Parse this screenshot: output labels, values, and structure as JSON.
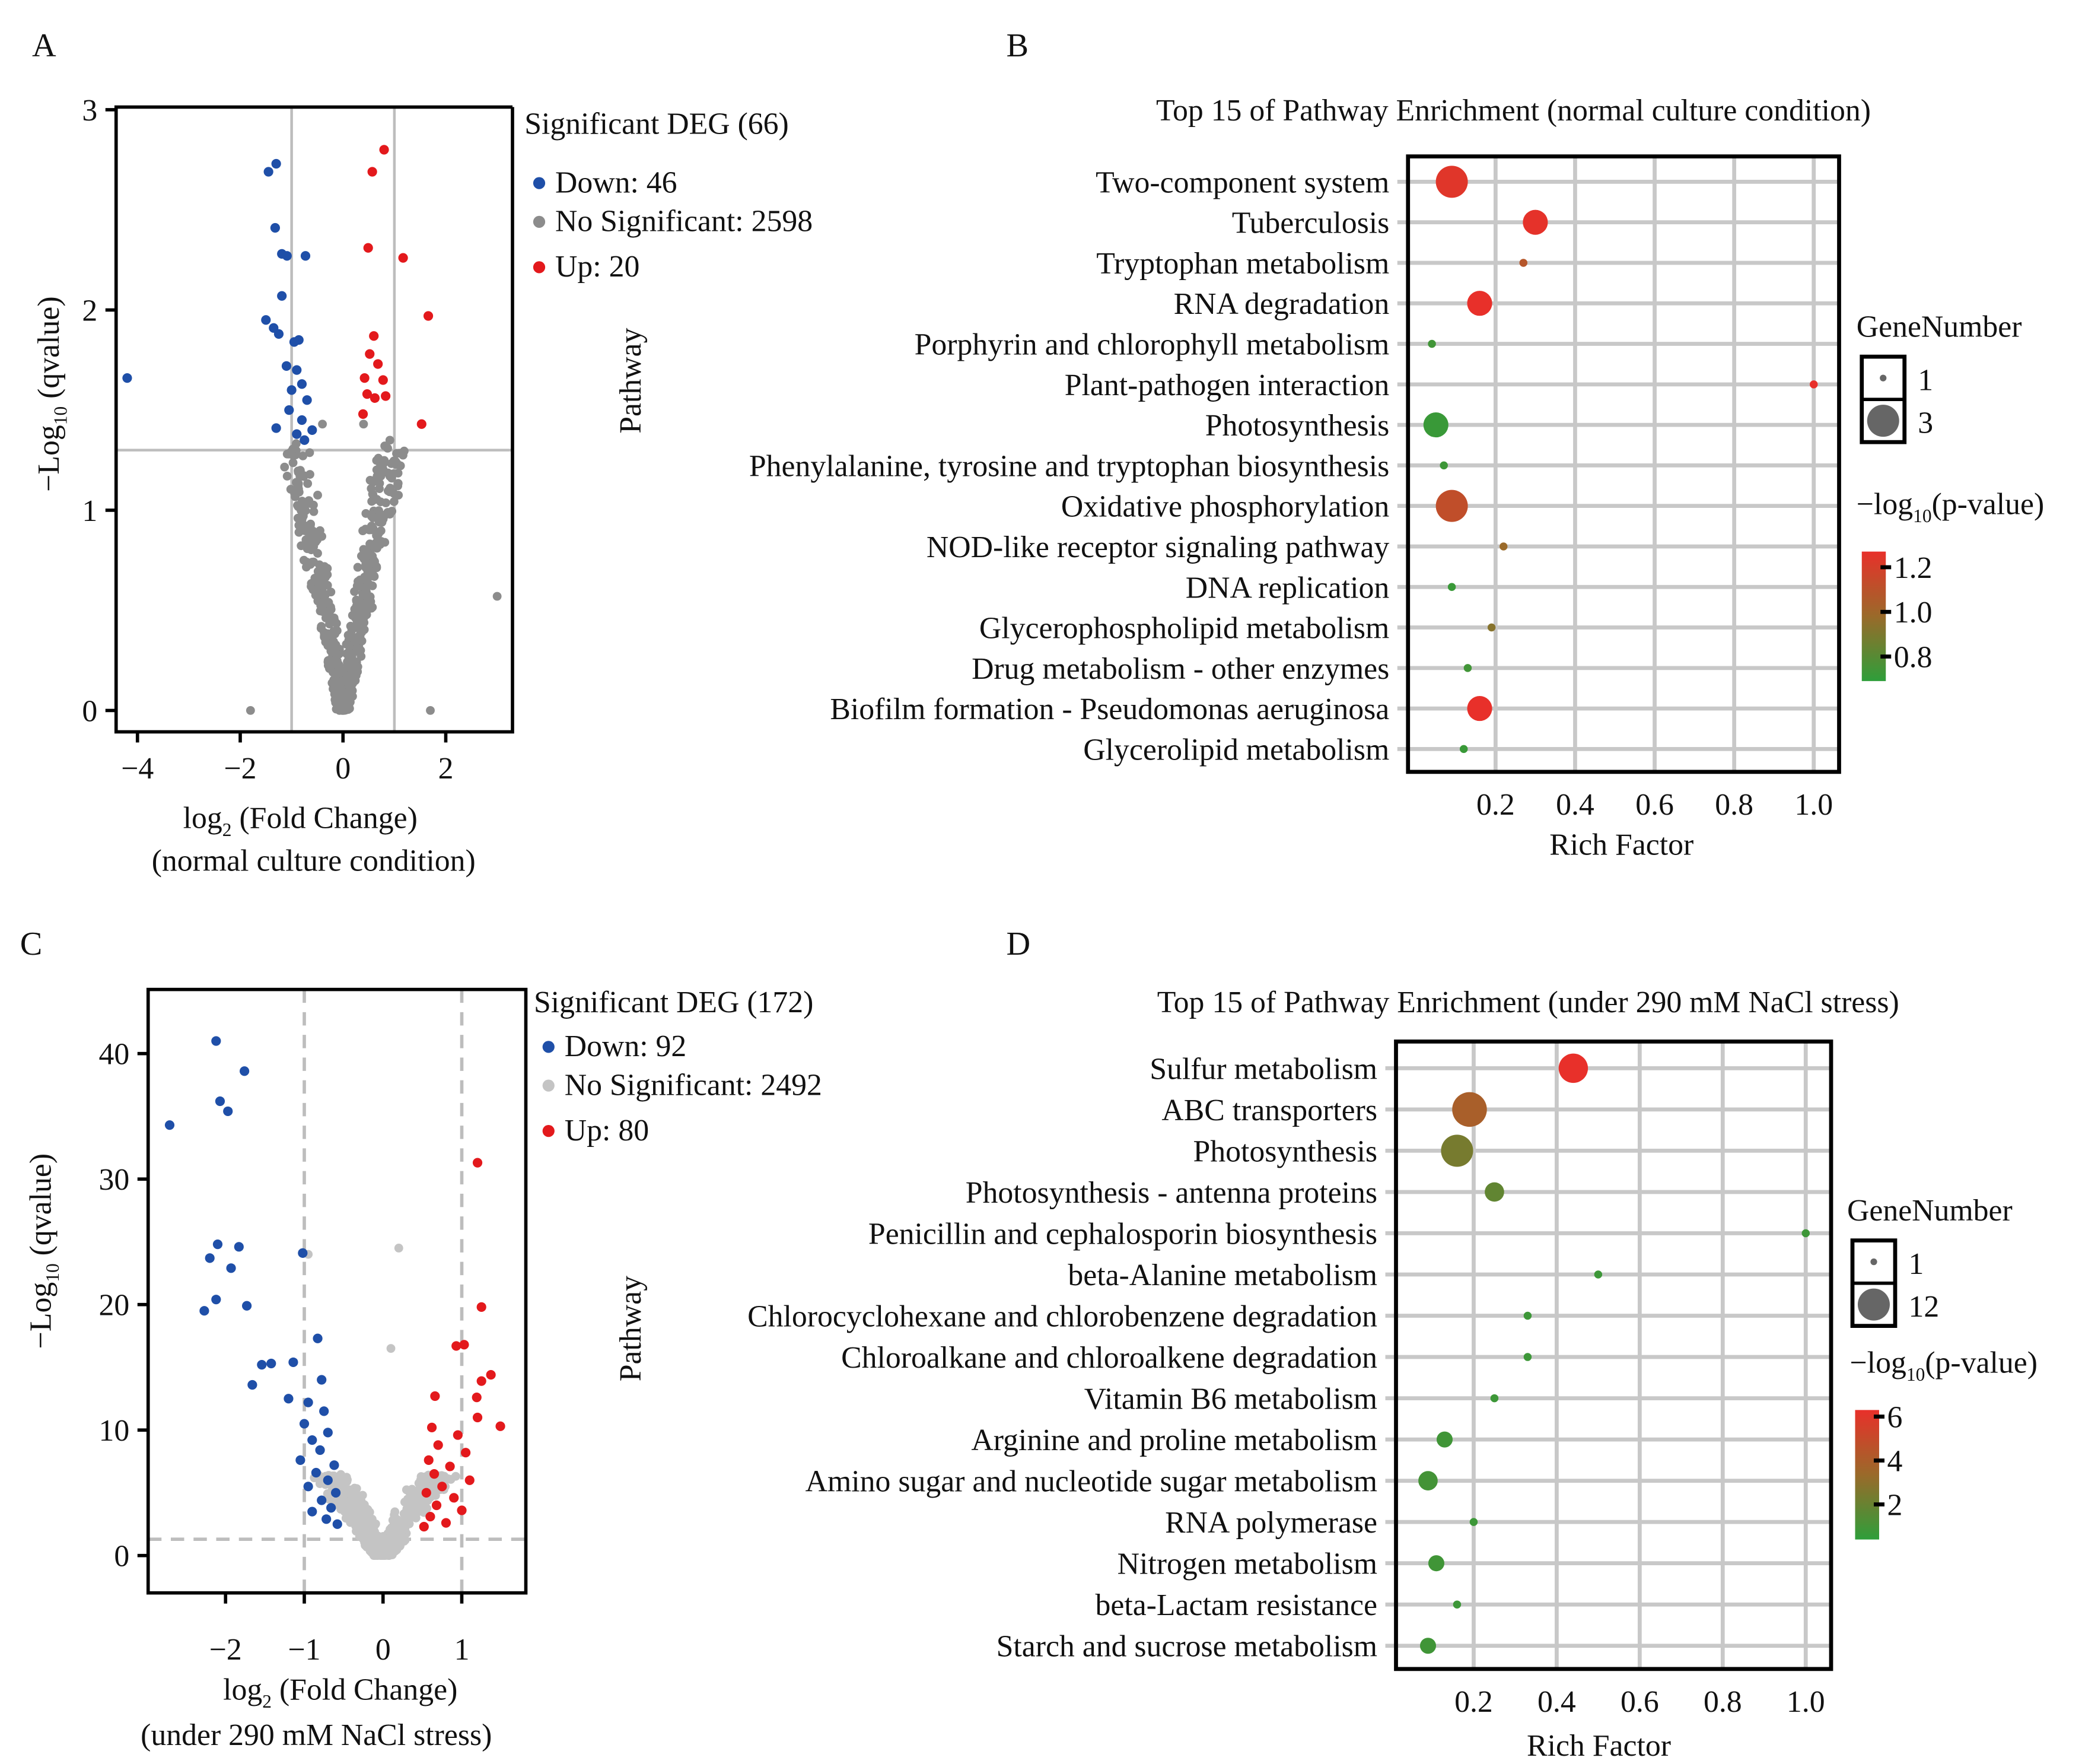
{
  "panel_labels": [
    "A",
    "B",
    "C",
    "D"
  ],
  "colors": {
    "down": "#1f4fa8",
    "up": "#e3191c",
    "ns": "#8c8c8c",
    "ns_light": "#c4c4c4",
    "low": "#2e9e3a",
    "mid": "#9a6a2a",
    "high": "#e8302a"
  },
  "chart_data": [
    {
      "type": "scatter",
      "id": "A",
      "xlabel_main": "log",
      "xlabel_sub": "2",
      "xlabel_rest": " (Fold Change)",
      "xlabel_line2": "(normal culture condition)",
      "ylabel_main": "−Log",
      "ylabel_sub": "10",
      "ylabel_rest": " (qvalue)",
      "xticks": [
        "−4",
        "−2",
        "0",
        "2"
      ],
      "xtick_values": [
        -4,
        -2,
        0,
        2
      ],
      "yticks": [
        "0",
        "1",
        "2",
        "3"
      ],
      "ytick_values": [
        0,
        1,
        2,
        3
      ],
      "xlim": [
        -4.5,
        3.4
      ],
      "ylim": [
        0,
        3
      ],
      "thresholds": {
        "fc": 1,
        "q": 1.3
      },
      "legend": {
        "title": "Significant DEG (66)",
        "down": "Down: 46",
        "ns": "No Significant: 2598",
        "up": "Up: 20"
      },
      "counts": {
        "down": 46,
        "ns": 2598,
        "up": 20
      },
      "down_points": [
        [
          -1.3,
          2.73
        ],
        [
          -1.45,
          2.69
        ],
        [
          -1.32,
          2.41
        ],
        [
          -1.19,
          2.28
        ],
        [
          -1.09,
          2.27
        ],
        [
          -0.73,
          2.27
        ],
        [
          -1.19,
          2.07
        ],
        [
          -1.5,
          1.95
        ],
        [
          -1.35,
          1.91
        ],
        [
          -0.86,
          1.85
        ],
        [
          -0.95,
          1.84
        ],
        [
          -1.25,
          1.88
        ],
        [
          -4.2,
          1.66
        ],
        [
          -1.1,
          1.72
        ],
        [
          -0.9,
          1.7
        ],
        [
          -0.8,
          1.63
        ],
        [
          -1.0,
          1.6
        ],
        [
          -0.7,
          1.55
        ],
        [
          -1.3,
          1.41
        ],
        [
          -0.8,
          1.45
        ],
        [
          -0.6,
          1.4
        ],
        [
          -1.05,
          1.5
        ],
        [
          -0.75,
          1.35
        ],
        [
          -0.9,
          1.38
        ]
      ],
      "up_points": [
        [
          0.8,
          2.8
        ],
        [
          0.57,
          2.69
        ],
        [
          0.49,
          2.31
        ],
        [
          1.17,
          2.26
        ],
        [
          1.66,
          1.97
        ],
        [
          0.6,
          1.87
        ],
        [
          0.52,
          1.78
        ],
        [
          0.68,
          1.73
        ],
        [
          0.42,
          1.66
        ],
        [
          0.78,
          1.65
        ],
        [
          0.47,
          1.58
        ],
        [
          0.83,
          1.57
        ],
        [
          1.53,
          1.43
        ],
        [
          0.39,
          1.48
        ],
        [
          0.62,
          1.56
        ]
      ]
    },
    {
      "type": "bubble",
      "id": "B",
      "title": "Top 15 of Pathway Enrichment (normal culture condition)",
      "xlabel": "Rich Factor",
      "ylabel": "Pathway",
      "xticks": [
        "0.2",
        "0.4",
        "0.6",
        "0.8",
        "1.0"
      ],
      "xtick_values": [
        0.2,
        0.4,
        0.6,
        0.8,
        1.0
      ],
      "categories": [
        "Two-component system",
        "Tuberculosis",
        "Tryptophan metabolism",
        "RNA degradation",
        "Porphyrin and chlorophyll metabolism",
        "Plant-pathogen interaction",
        "Photosynthesis",
        "Phenylalanine, tyrosine and tryptophan biosynthesis",
        "Oxidative phosphorylation",
        "NOD-like receptor signaling pathway",
        "DNA replication",
        "Glycerophospholipid metabolism",
        "Drug metabolism - other enzymes",
        "Biofilm formation - Pseudomonas aeruginosa",
        "Glycerolipid metabolism"
      ],
      "rich_factor": [
        0.09,
        0.3,
        0.27,
        0.16,
        0.04,
        1.0,
        0.05,
        0.07,
        0.09,
        0.22,
        0.09,
        0.19,
        0.13,
        0.16,
        0.12
      ],
      "gene_number": [
        3,
        2,
        1,
        2,
        1,
        1,
        2,
        1,
        3,
        1,
        1,
        1,
        1,
        2,
        1
      ],
      "neg_log10_p": [
        1.24,
        1.26,
        1.08,
        1.27,
        0.74,
        1.27,
        0.72,
        0.73,
        1.12,
        0.98,
        0.72,
        0.93,
        0.74,
        1.27,
        0.72
      ],
      "size_legend": {
        "title": "GeneNumber",
        "values": [
          "1",
          "3"
        ]
      },
      "color_legend": {
        "title_main": "−log",
        "title_sub": "10",
        "title_rest": "(p-value)",
        "ticks": [
          "1.2",
          "1.0",
          "0.8"
        ],
        "tick_values": [
          1.2,
          1.0,
          0.8
        ],
        "range": [
          0.69,
          1.27
        ]
      }
    },
    {
      "type": "scatter",
      "id": "C",
      "xlabel_main": "log",
      "xlabel_sub": "2",
      "xlabel_rest": " (Fold Change)",
      "xlabel_line2": "(under 290 mM NaCl stress)",
      "ylabel_main": "−Log",
      "ylabel_sub": "10",
      "ylabel_rest": " (qvalue)",
      "xticks": [
        "−2",
        "−1",
        "0",
        "1"
      ],
      "xtick_values": [
        -2,
        -1,
        0,
        1
      ],
      "yticks": [
        "0",
        "10",
        "20",
        "30",
        "40"
      ],
      "ytick_values": [
        0,
        10,
        20,
        30,
        40
      ],
      "xlim": [
        -2.98,
        1.8
      ],
      "ylim": [
        -3,
        45
      ],
      "thresholds": {
        "fc": 1,
        "q": 1.3
      },
      "legend": {
        "title": "Significant DEG (172)",
        "down": "Down: 92",
        "ns": "No Significant: 2492",
        "up": "Up: 80"
      },
      "counts": {
        "down": 92,
        "ns": 2492,
        "up": 80
      },
      "down_points": [
        [
          -2.12,
          41
        ],
        [
          -1.76,
          38.6
        ],
        [
          -2.07,
          36.2
        ],
        [
          -1.97,
          35.4
        ],
        [
          -2.71,
          34.3
        ],
        [
          -1.02,
          24.1
        ],
        [
          -2.1,
          24.8
        ],
        [
          -1.83,
          24.6
        ],
        [
          -2.2,
          23.7
        ],
        [
          -1.93,
          22.9
        ],
        [
          -1.73,
          19.9
        ],
        [
          -2.12,
          20.4
        ],
        [
          -2.27,
          19.5
        ],
        [
          -0.83,
          17.3
        ],
        [
          -1.54,
          15.2
        ],
        [
          -1.42,
          15.3
        ],
        [
          -1.66,
          13.6
        ],
        [
          -1.14,
          15.4
        ],
        [
          -0.78,
          14
        ],
        [
          -1.2,
          12.5
        ],
        [
          -0.95,
          12.2
        ],
        [
          -0.75,
          11.5
        ],
        [
          -1.0,
          10.5
        ],
        [
          -0.7,
          9.8
        ],
        [
          -0.9,
          9.2
        ],
        [
          -0.8,
          8.4
        ],
        [
          -1.05,
          7.6
        ],
        [
          -0.62,
          7.2
        ],
        [
          -0.85,
          6.6
        ],
        [
          -0.7,
          6.0
        ],
        [
          -0.95,
          5.5
        ],
        [
          -0.6,
          5.0
        ],
        [
          -0.78,
          4.4
        ],
        [
          -0.66,
          3.8
        ],
        [
          -0.9,
          3.5
        ],
        [
          -0.72,
          2.9
        ],
        [
          -0.58,
          2.5
        ]
      ],
      "up_points": [
        [
          1.2,
          31.3
        ],
        [
          1.25,
          19.8
        ],
        [
          0.93,
          16.7
        ],
        [
          1.03,
          16.8
        ],
        [
          1.37,
          14.4
        ],
        [
          1.25,
          13.9
        ],
        [
          0.66,
          12.7
        ],
        [
          1.19,
          12.6
        ],
        [
          1.49,
          10.3
        ],
        [
          1.2,
          11
        ],
        [
          0.62,
          10.2
        ],
        [
          0.95,
          9.6
        ],
        [
          0.7,
          8.8
        ],
        [
          1.05,
          8.2
        ],
        [
          0.58,
          7.6
        ],
        [
          0.85,
          7.1
        ],
        [
          0.65,
          6.5
        ],
        [
          1.1,
          6.0
        ],
        [
          0.75,
          5.5
        ],
        [
          0.55,
          5.0
        ],
        [
          0.9,
          4.6
        ],
        [
          0.68,
          4.0
        ],
        [
          1.0,
          3.6
        ],
        [
          0.6,
          3.1
        ],
        [
          0.8,
          2.6
        ],
        [
          0.52,
          2.3
        ]
      ]
    },
    {
      "type": "bubble",
      "id": "D",
      "title": "Top 15 of Pathway Enrichment (under 290 mM NaCl stress)",
      "xlabel": "Rich Factor",
      "ylabel": "Pathway",
      "xticks": [
        "0.2",
        "0.4",
        "0.6",
        "0.8",
        "1.0"
      ],
      "xtick_values": [
        0.2,
        0.4,
        0.6,
        0.8,
        1.0
      ],
      "categories": [
        "Sulfur metabolism",
        "ABC transporters",
        "Photosynthesis",
        "Photosynthesis - antenna proteins",
        "Penicillin and cephalosporin biosynthesis",
        "beta-Alanine metabolism",
        "Chlorocyclohexane and chlorobenzene degradation",
        "Chloroalkane and chloroalkene degradation",
        "Vitamin B6 metabolism",
        "Arginine and proline metabolism",
        "Amino sugar and nucleotide sugar metabolism",
        "RNA polymerase",
        "Nitrogen metabolism",
        "beta-Lactam resistance",
        "Starch and sucrose metabolism"
      ],
      "rich_factor": [
        0.44,
        0.19,
        0.16,
        0.25,
        1.0,
        0.5,
        0.33,
        0.33,
        0.25,
        0.13,
        0.09,
        0.2,
        0.11,
        0.16,
        0.09
      ],
      "gene_number": [
        8,
        12,
        10,
        3,
        1,
        1,
        1,
        1,
        1,
        2,
        3,
        1,
        2,
        1,
        2
      ],
      "neg_log10_p": [
        6.3,
        3.9,
        2.4,
        1.8,
        0.8,
        0.8,
        0.8,
        0.8,
        0.8,
        0.9,
        1.0,
        0.8,
        0.9,
        0.8,
        0.9
      ],
      "size_legend": {
        "title": "GeneNumber",
        "values": [
          "1",
          "12"
        ]
      },
      "color_legend": {
        "title_main": "−log",
        "title_sub": "10",
        "title_rest": "(p-value)",
        "ticks": [
          "6",
          "4",
          "2"
        ],
        "tick_values": [
          6,
          4,
          2
        ],
        "range": [
          0.4,
          6.3
        ]
      }
    }
  ]
}
